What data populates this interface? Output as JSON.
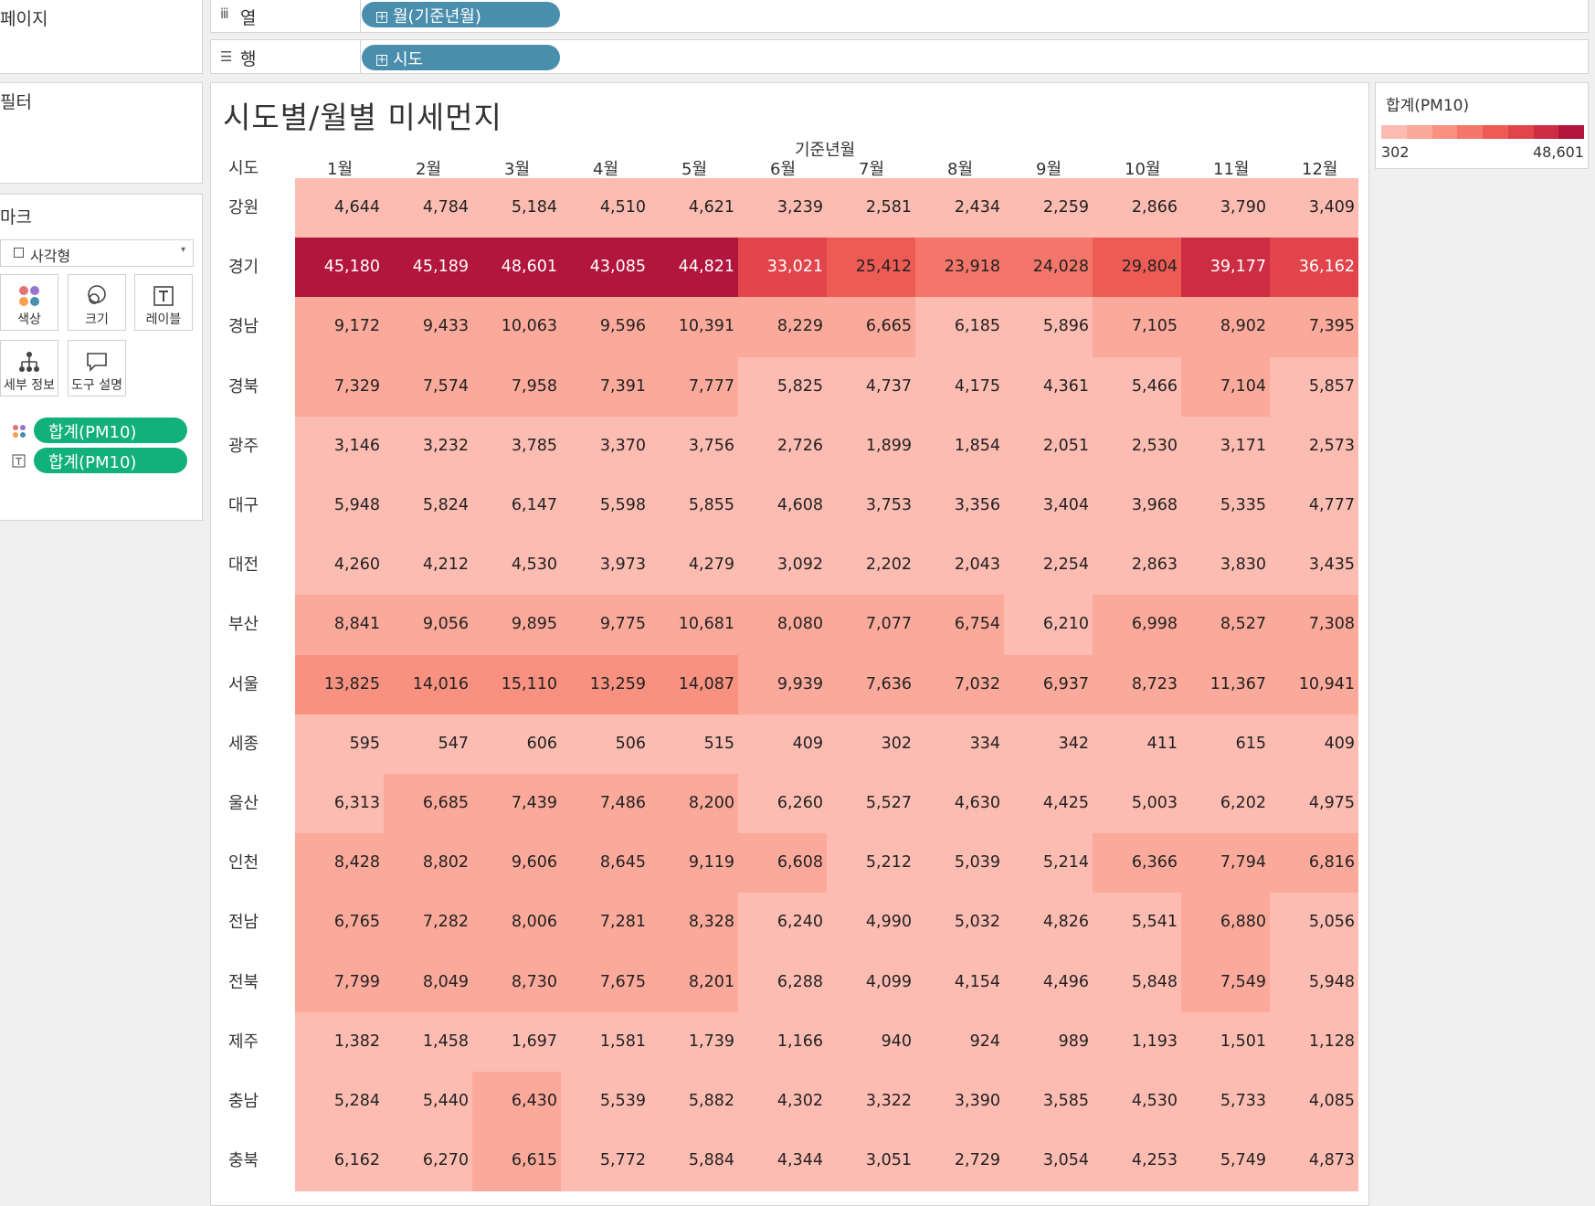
{
  "left": {
    "pages_label": "페이지",
    "filters_label": "필터",
    "marks_label": "마크",
    "mark_type": "사각형",
    "mark_buttons": {
      "color": "색상",
      "size": "크기",
      "label": "레이블",
      "detail": "세부 정보",
      "tooltip": "도구 설명"
    },
    "mark_fields": [
      "합계(PM10)",
      "합계(PM10)"
    ]
  },
  "shelves": {
    "columns_label": "열",
    "columns_pill": "월(기준년월)",
    "rows_label": "행",
    "rows_pill": "시도"
  },
  "viz": {
    "title": "시도별/월별 미세먼지",
    "column_title": "기준년월",
    "row_title": "시도"
  },
  "legend": {
    "title": "합계(PM10)",
    "min": "302",
    "max": "48,601",
    "colors": [
      "#fdbcb1",
      "#fba99a",
      "#f89180",
      "#f4766a",
      "#ee5b55",
      "#e2444b",
      "#cc2d43",
      "#b2163c"
    ]
  },
  "chart_data": {
    "type": "heatmap",
    "x": [
      "1월",
      "2월",
      "3월",
      "4월",
      "5월",
      "6월",
      "7월",
      "8월",
      "9월",
      "10월",
      "11월",
      "12월"
    ],
    "y": [
      "강원",
      "경기",
      "경남",
      "경북",
      "광주",
      "대구",
      "대전",
      "부산",
      "서울",
      "세종",
      "울산",
      "인천",
      "전남",
      "전북",
      "제주",
      "충남",
      "충북"
    ],
    "values": [
      [
        4644,
        4784,
        5184,
        4510,
        4621,
        3239,
        2581,
        2434,
        2259,
        2866,
        3790,
        3409
      ],
      [
        45180,
        45189,
        48601,
        43085,
        44821,
        33021,
        25412,
        23918,
        24028,
        29804,
        39177,
        36162
      ],
      [
        9172,
        9433,
        10063,
        9596,
        10391,
        8229,
        6665,
        6185,
        5896,
        7105,
        8902,
        7395
      ],
      [
        7329,
        7574,
        7958,
        7391,
        7777,
        5825,
        4737,
        4175,
        4361,
        5466,
        7104,
        5857
      ],
      [
        3146,
        3232,
        3785,
        3370,
        3756,
        2726,
        1899,
        1854,
        2051,
        2530,
        3171,
        2573
      ],
      [
        5948,
        5824,
        6147,
        5598,
        5855,
        4608,
        3753,
        3356,
        3404,
        3968,
        5335,
        4777
      ],
      [
        4260,
        4212,
        4530,
        3973,
        4279,
        3092,
        2202,
        2043,
        2254,
        2863,
        3830,
        3435
      ],
      [
        8841,
        9056,
        9895,
        9775,
        10681,
        8080,
        7077,
        6754,
        6210,
        6998,
        8527,
        7308
      ],
      [
        13825,
        14016,
        15110,
        13259,
        14087,
        9939,
        7636,
        7032,
        6937,
        8723,
        11367,
        10941
      ],
      [
        595,
        547,
        606,
        506,
        515,
        409,
        302,
        334,
        342,
        411,
        615,
        409
      ],
      [
        6313,
        6685,
        7439,
        7486,
        8200,
        6260,
        5527,
        4630,
        4425,
        5003,
        6202,
        4975
      ],
      [
        8428,
        8802,
        9606,
        8645,
        9119,
        6608,
        5212,
        5039,
        5214,
        6366,
        7794,
        6816
      ],
      [
        6765,
        7282,
        8006,
        7281,
        8328,
        6240,
        4990,
        5032,
        4826,
        5541,
        6880,
        5056
      ],
      [
        7799,
        8049,
        8730,
        7675,
        8201,
        6288,
        4099,
        4154,
        4496,
        5848,
        7549,
        5948
      ],
      [
        1382,
        1458,
        1697,
        1581,
        1739,
        1166,
        940,
        924,
        989,
        1193,
        1501,
        1128
      ],
      [
        5284,
        5440,
        6430,
        5539,
        5882,
        4302,
        3322,
        3390,
        3585,
        4530,
        5733,
        4085
      ],
      [
        6162,
        6270,
        6615,
        5772,
        5884,
        4344,
        3051,
        2729,
        3054,
        4253,
        5749,
        4873
      ]
    ],
    "color_range": [
      302,
      48601
    ],
    "title": "시도별/월별 미세먼지",
    "xlabel": "기준년월",
    "ylabel": "시도"
  }
}
